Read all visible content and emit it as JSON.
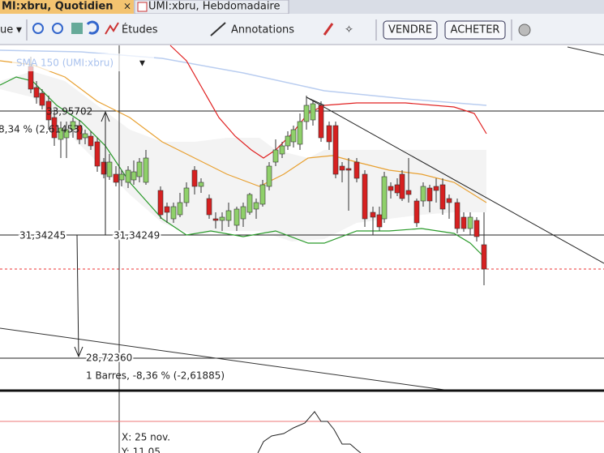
{
  "tabs": [
    "MI:xbru, Quotidien",
    "UMI:xbru, Hebdomadaire"
  ],
  "toolbar": {
    "left": "ue",
    "studies": "Études",
    "annotations": "Annotations",
    "sell": "VENDRE",
    "buy": "ACHETER"
  },
  "indicator": "SMA 150 (UMI:xbru)",
  "annotations": {
    "high_price": "33,95702",
    "change_up": "8,34 % (2,61453)",
    "level_left": "31,34245",
    "level_right": "31,34249",
    "low_price": "28,72360",
    "change_down": "1 Barres, -8,36 % (-2,61885)"
  },
  "crosshair": {
    "x": "X: 25 nov.",
    "y": "Y: 11,05"
  }
}
